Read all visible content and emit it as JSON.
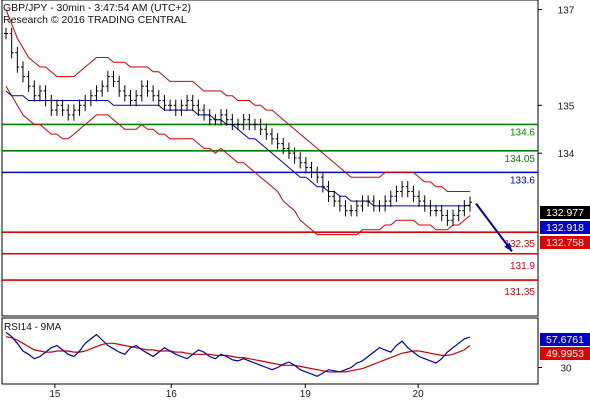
{
  "header": {
    "line1": "GBP/JPY - 30min - 3:47:54 AM (UTC+2)",
    "line2": "Research © 2016 TRADING CENTRAL"
  },
  "chart_data": [
    {
      "type": "line",
      "title": "",
      "price_axis_labels": [
        "137",
        "135",
        "134",
        "30"
      ],
      "ylim": [
        130.6,
        137.2
      ],
      "x_tick_labels": [
        "15",
        "16",
        "19",
        "20"
      ],
      "x_tick_bars": [
        15,
        48,
        86,
        118
      ],
      "total_bars": 152,
      "levels": [
        {
          "value": 134.6,
          "label": "134.6",
          "color": "#008000"
        },
        {
          "value": 134.05,
          "label": "134.05",
          "color": "#008000"
        },
        {
          "value": 133.6,
          "label": "133.6",
          "color": "#0000cc"
        },
        {
          "value": 132.35,
          "label": "132.35",
          "color": "#dd0000"
        },
        {
          "value": 131.9,
          "label": "131.9",
          "color": "#dd0000"
        },
        {
          "value": 131.35,
          "label": "131.35",
          "color": "#dd0000"
        }
      ],
      "price_tags": [
        {
          "value": 132.977,
          "label": "132.977",
          "bg": "#000000"
        },
        {
          "value": 132.918,
          "label": "132.918",
          "bg": "#0000cc"
        },
        {
          "value": 132.758,
          "label": "132.758",
          "bg": "#dd0000"
        }
      ],
      "price_close": [
        136.5,
        136.1,
        135.8,
        135.6,
        135.4,
        135.2,
        135.3,
        135.1,
        134.9,
        135.0,
        134.9,
        134.8,
        134.9,
        135.0,
        135.1,
        135.2,
        135.3,
        135.4,
        135.6,
        135.5,
        135.3,
        135.2,
        135.1,
        135.2,
        135.4,
        135.3,
        135.2,
        135.1,
        135.0,
        135.0,
        134.9,
        135.0,
        135.1,
        135.0,
        134.9,
        134.8,
        134.7,
        134.7,
        134.8,
        134.7,
        134.6,
        134.6,
        134.7,
        134.6,
        134.6,
        134.5,
        134.4,
        134.3,
        134.2,
        134.1,
        134.0,
        133.9,
        133.8,
        133.7,
        133.6,
        133.5,
        133.3,
        133.1,
        133.0,
        132.9,
        132.8,
        132.8,
        132.9,
        133.0,
        133.0,
        132.9,
        132.9,
        133.0,
        133.1,
        133.2,
        133.3,
        133.2,
        133.1,
        133.0,
        132.9,
        132.8,
        132.8,
        132.7,
        132.6,
        132.7,
        132.8,
        132.9,
        132.977
      ],
      "price_upper_band": [
        137.0,
        136.7,
        136.4,
        136.2,
        136.0,
        135.9,
        135.8,
        135.8,
        135.7,
        135.6,
        135.6,
        135.6,
        135.6,
        135.7,
        135.8,
        135.9,
        136.0,
        136.0,
        136.0,
        135.9,
        135.9,
        135.9,
        135.8,
        135.8,
        135.8,
        135.8,
        135.7,
        135.7,
        135.6,
        135.5,
        135.5,
        135.5,
        135.5,
        135.5,
        135.4,
        135.3,
        135.3,
        135.3,
        135.3,
        135.2,
        135.2,
        135.1,
        135.1,
        135.1,
        135.0,
        135.0,
        134.9,
        134.9,
        134.8,
        134.7,
        134.6,
        134.5,
        134.4,
        134.3,
        134.2,
        134.1,
        134.0,
        133.9,
        133.8,
        133.7,
        133.6,
        133.5,
        133.5,
        133.5,
        133.5,
        133.5,
        133.5,
        133.6,
        133.6,
        133.6,
        133.6,
        133.6,
        133.6,
        133.5,
        133.4,
        133.4,
        133.3,
        133.3,
        133.2,
        133.2,
        133.2,
        133.2,
        133.2
      ],
      "price_lower_band": [
        135.4,
        135.2,
        135.0,
        134.8,
        134.7,
        134.6,
        134.6,
        134.5,
        134.4,
        134.4,
        134.3,
        134.3,
        134.4,
        134.5,
        134.6,
        134.7,
        134.8,
        134.8,
        134.8,
        134.7,
        134.6,
        134.5,
        134.5,
        134.5,
        134.6,
        134.5,
        134.5,
        134.4,
        134.4,
        134.3,
        134.3,
        134.3,
        134.3,
        134.3,
        134.2,
        134.1,
        134.1,
        134.0,
        134.1,
        134.0,
        133.9,
        133.8,
        133.8,
        133.7,
        133.6,
        133.5,
        133.4,
        133.3,
        133.2,
        133.0,
        132.9,
        132.8,
        132.6,
        132.5,
        132.4,
        132.3,
        132.3,
        132.3,
        132.3,
        132.3,
        132.3,
        132.3,
        132.3,
        132.4,
        132.4,
        132.4,
        132.4,
        132.5,
        132.5,
        132.6,
        132.6,
        132.6,
        132.6,
        132.5,
        132.5,
        132.5,
        132.4,
        132.4,
        132.4,
        132.5,
        132.5,
        132.6,
        132.7
      ],
      "price_ma_blue": [
        135.3,
        135.2,
        135.2,
        135.2,
        135.1,
        135.1,
        135.1,
        135.1,
        135.1,
        135.1,
        135.1,
        135.1,
        135.1,
        135.1,
        135.1,
        135.1,
        135.1,
        135.1,
        135.1,
        135.0,
        135.0,
        135.0,
        135.0,
        135.0,
        135.0,
        135.0,
        135.0,
        135.0,
        134.9,
        134.9,
        134.9,
        134.9,
        134.9,
        134.9,
        134.8,
        134.8,
        134.8,
        134.7,
        134.7,
        134.6,
        134.6,
        134.5,
        134.4,
        134.3,
        134.3,
        134.2,
        134.1,
        134.0,
        133.9,
        133.8,
        133.7,
        133.6,
        133.5,
        133.5,
        133.4,
        133.3,
        133.3,
        133.2,
        133.2,
        133.1,
        133.1,
        133.0,
        133.0,
        133.0,
        133.0,
        132.9,
        132.9,
        132.9,
        132.9,
        132.9,
        132.9,
        132.9,
        132.9,
        132.9,
        132.9,
        132.9,
        132.9,
        132.9,
        132.9,
        132.9,
        132.9,
        132.9,
        132.918
      ],
      "rsi": {
        "label": "RSI14 - 9MA",
        "ylim": [
          15,
          75
        ],
        "tick_label": "30",
        "rsi_values": [
          62,
          58,
          52,
          45,
          42,
          38,
          40,
          44,
          48,
          50,
          46,
          42,
          40,
          45,
          52,
          56,
          60,
          55,
          50,
          47,
          44,
          42,
          48,
          50,
          46,
          43,
          40,
          44,
          48,
          45,
          42,
          40,
          38,
          42,
          46,
          44,
          40,
          38,
          42,
          40,
          37,
          36,
          38,
          36,
          34,
          32,
          30,
          28,
          30,
          33,
          35,
          32,
          28,
          26,
          24,
          22,
          25,
          28,
          27,
          26,
          28,
          30,
          34,
          36,
          40,
          44,
          48,
          46,
          44,
          50,
          54,
          48,
          44,
          40,
          38,
          36,
          34,
          38,
          44,
          48,
          52,
          56,
          57.6761
        ],
        "ma_values": [
          58,
          57,
          55,
          52,
          49,
          46,
          45,
          44,
          44,
          45,
          45,
          45,
          44,
          44,
          45,
          47,
          49,
          51,
          52,
          52,
          51,
          50,
          49,
          48,
          47,
          46,
          46,
          45,
          45,
          45,
          44,
          44,
          43,
          42,
          42,
          42,
          42,
          41,
          41,
          41,
          40,
          39,
          39,
          38,
          37,
          36,
          35,
          34,
          33,
          32,
          32,
          32,
          31,
          30,
          29,
          28,
          27,
          26,
          26,
          26,
          26,
          27,
          28,
          29,
          31,
          33,
          35,
          37,
          39,
          41,
          43,
          44,
          45,
          45,
          44,
          43,
          42,
          41,
          41,
          42,
          44,
          46,
          49.9953
        ],
        "tags": [
          {
            "value": 57.6761,
            "label": "57.6761",
            "bg": "#0000cc"
          },
          {
            "value": 49.9953,
            "label": "49.9953",
            "bg": "#dd0000"
          }
        ]
      },
      "arrow": {
        "from_value": 132.95,
        "to_value": 131.95,
        "color": "#0000aa"
      }
    }
  ]
}
